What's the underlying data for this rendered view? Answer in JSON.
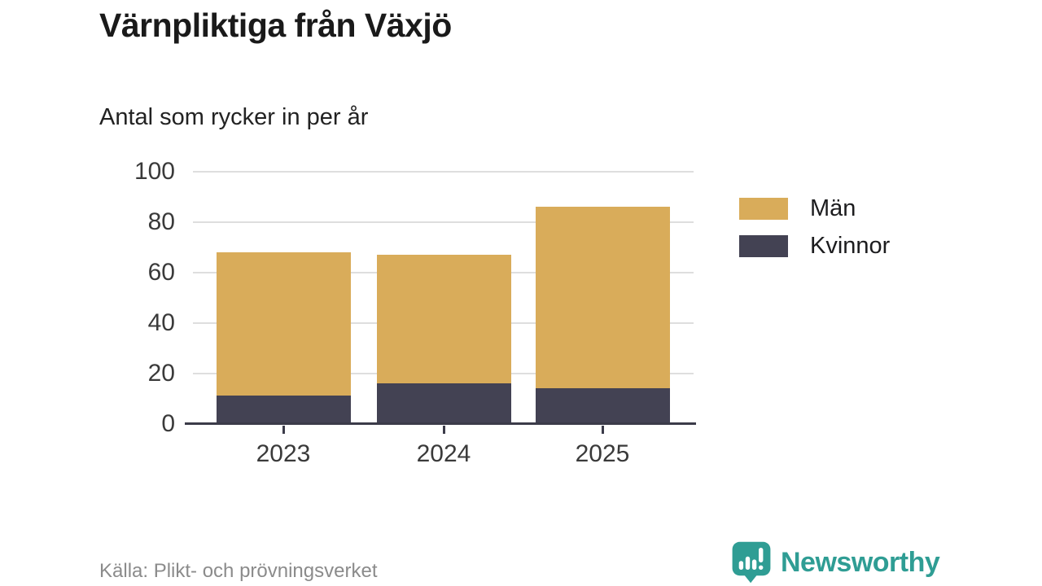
{
  "header": {
    "title": "Värnpliktiga från Växjö",
    "subtitle": "Antal som rycker in per år"
  },
  "chart_data": {
    "type": "bar",
    "stacked": true,
    "categories": [
      "2023",
      "2024",
      "2025"
    ],
    "series": [
      {
        "name": "Män",
        "color": "#D9AC5A",
        "values": [
          57,
          51,
          72
        ]
      },
      {
        "name": "Kvinnor",
        "color": "#434253",
        "values": [
          11,
          16,
          14
        ]
      }
    ],
    "stack_bottom_to_top": [
      "Kvinnor",
      "Män"
    ],
    "totals": [
      68,
      67,
      86
    ],
    "title": "Värnpliktiga från Växjö",
    "subtitle": "Antal som rycker in per år",
    "xlabel": "",
    "ylabel": "",
    "ylim": [
      0,
      100
    ],
    "yticks": [
      0,
      20,
      40,
      60,
      80,
      100
    ],
    "grid": true,
    "legend_position": "right"
  },
  "legend": {
    "items": [
      {
        "label": "Män",
        "color": "#D9AC5A"
      },
      {
        "label": "Kvinnor",
        "color": "#434253"
      }
    ]
  },
  "footer": {
    "source": "Källa: Plikt- och prövningsverket",
    "brand": "Newsworthy"
  },
  "icons": {
    "brand_icon": "newsworthy-speech-bubble-bar-chart-icon"
  },
  "colors": {
    "background": "#ffffff",
    "grid": "#DEDEDE",
    "axis": "#3B3B49",
    "tick_label": "#3A3A3A",
    "title_text": "#1a1a1a",
    "source_text": "#8B8B8B",
    "brand_teal": "#2F9D94"
  }
}
